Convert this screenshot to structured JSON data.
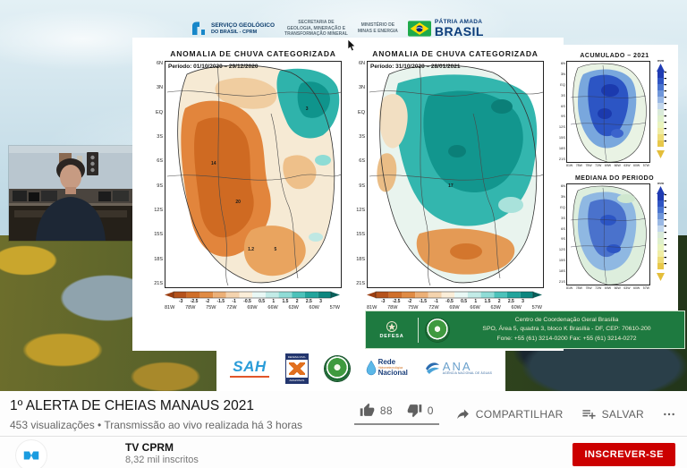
{
  "video": {
    "header": {
      "cprm_logo": {
        "line1": "SERVIÇO GEOLÓGICO",
        "line2": "DO BRASIL - CPRM"
      },
      "secretaria": [
        "SECRETARIA DE",
        "GEOLOGIA, MINERAÇÃO E",
        "TRANSFORMAÇÃO MINERAL"
      ],
      "ministerio": [
        "MINISTÉRIO DE",
        "MINAS E ENERGIA"
      ],
      "patria": {
        "line1": "PÁTRIA AMADA",
        "line2": "BRASIL"
      }
    },
    "anomaly_maps": {
      "lat_labels": [
        "6N",
        "3N",
        "EQ",
        "3S",
        "6S",
        "9S",
        "12S",
        "15S",
        "18S",
        "21S"
      ],
      "lon_labels": [
        "81W",
        "78W",
        "75W",
        "72W",
        "69W",
        "66W",
        "63W",
        "60W",
        "57W"
      ],
      "scale_labels": [
        "-3",
        "-2.5",
        "-2",
        "-1.5",
        "-1",
        "-0.5",
        "0.5",
        "1",
        "1.5",
        "2",
        "2.5",
        "3"
      ],
      "map1": {
        "title": "ANOMALIA DE CHUVA CATEGORIZADA",
        "period": "Período: 01/10/2020 – 29/12/2020",
        "annotations": [
          "14",
          "20",
          "3",
          "1.2",
          "5"
        ]
      },
      "map2": {
        "title": "ANOMALIA DE CHUVA CATEGORIZADA",
        "period": "Período: 31/10/2020 – 28/01/2021",
        "annotations": [
          "17"
        ]
      }
    },
    "accum_maps": {
      "chart1_title": "ACUMULADO – 2021",
      "chart2_title": "MEDIANA DO PERIODO",
      "colorbar_label": "mm"
    },
    "banner": {
      "defesa_label": "DEFESA",
      "lines": [
        "Centro de Coordenação Geral Brasília",
        "SPO, Área 5, quadra 3, bloco K Brasília - DF, CEP: 70610-200",
        "Fone: +55 (61) 3214-0200 Fax: +55 (61) 3214-0272"
      ]
    },
    "partners": {
      "sah": "SAH",
      "defesa_civil": {
        "top": "DEFESA CIVIL",
        "bottom": "AMAZONAS"
      },
      "rede": {
        "name1": "Rede",
        "caption": "Hidrometeorológica",
        "name2": "Nacional"
      },
      "ana": {
        "name": "ANA",
        "caption": "AGÊNCIA NACIONAL DE ÁGUAS"
      }
    }
  },
  "page": {
    "title": "1º ALERTA DE CHEIAS MANAUS 2021",
    "meta": "453 visualizações • Transmissão ao vivo realizada há 3 horas",
    "actions": {
      "like_count": "88",
      "dislike_count": "0",
      "share_label": "COMPARTILHAR",
      "save_label": "SALVAR"
    },
    "channel": {
      "name": "TV CPRM",
      "subscribers": "8,32 mil inscritos",
      "subscribe_label": "INSCREVER-SE"
    }
  },
  "icons": {
    "like": "thumb-up",
    "dislike": "thumb-down",
    "share": "share-arrow",
    "save": "playlist-add",
    "more": "ellipsis",
    "flag": "brazil-flag",
    "cprm": "cprm-mark"
  },
  "colors": {
    "accent_red": "#cc0000",
    "banner_green": "#1e7a40",
    "cprm_blue": "#1a9ce0",
    "anomaly_orange": "#e2853c",
    "anomaly_teal": "#2fb3ab",
    "accum_blue": "#2c55c4"
  }
}
